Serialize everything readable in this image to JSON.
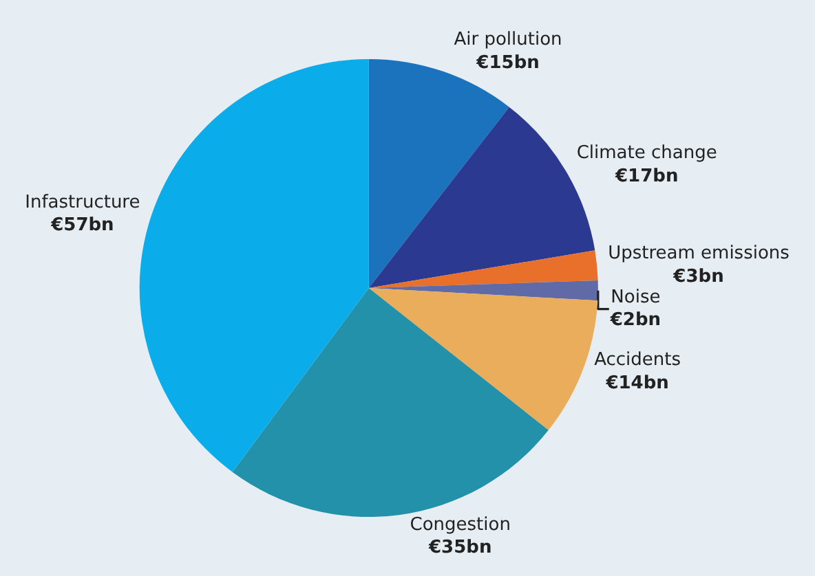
{
  "chart_data": {
    "type": "pie",
    "categories": [
      "Air pollution",
      "Climate change",
      "Upstream emissions",
      "Noise",
      "Accidents",
      "Congestion",
      "Infastructure"
    ],
    "values": [
      15,
      17,
      3,
      2,
      14,
      35,
      57
    ],
    "value_labels": [
      "€15bn",
      "€17bn",
      "€3bn",
      "€2bn",
      "€14bn",
      "€35bn",
      "€57bn"
    ],
    "colors": [
      "#1b73bd",
      "#2b3990",
      "#e8702a",
      "#5f6aa6",
      "#e9ad5b",
      "#2391a9",
      "#0bacea"
    ],
    "legend": false
  }
}
